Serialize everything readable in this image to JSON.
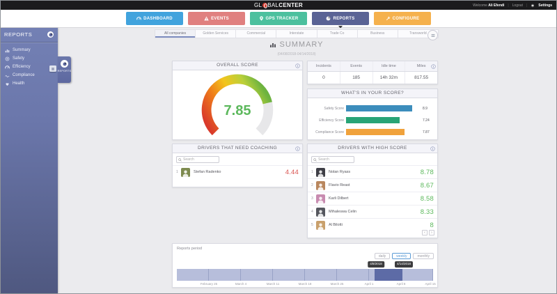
{
  "topbar": {
    "logo_prefix": "GL",
    "logo_mid": "BAL",
    "logo_suffix": "CENTER",
    "welcome": "Welcome",
    "user": "Ali Efendi",
    "logout": "Logout",
    "settings": "Settings"
  },
  "nav": {
    "items": [
      {
        "label": "DASHBOARD",
        "icon": "gauge",
        "color": "#41a3dd",
        "active": false
      },
      {
        "label": "EVENTS",
        "icon": "warning",
        "color": "#e0807f",
        "active": false
      },
      {
        "label": "GPS TRACKER",
        "icon": "pin",
        "color": "#4cc09e",
        "active": false
      },
      {
        "label": "REPORTS",
        "icon": "pie",
        "color": "#5a6395",
        "active": true
      },
      {
        "label": "CONFIGURE",
        "icon": "wrench",
        "color": "#f5b14d",
        "active": false
      }
    ]
  },
  "sidebar": {
    "title": "REPORTS",
    "flyout_label": "REPORTS",
    "items": [
      {
        "label": "Summary",
        "icon": "bars"
      },
      {
        "label": "Safety",
        "icon": "target"
      },
      {
        "label": "Efficiency",
        "icon": "gauge"
      },
      {
        "label": "Compliance",
        "icon": "signature"
      },
      {
        "label": "Health",
        "icon": "heart"
      }
    ]
  },
  "tabs": {
    "items": [
      "All companies",
      "Golden Services",
      "Commercial",
      "Interstate",
      "Trade Co",
      "Business",
      "Transworld"
    ],
    "active_index": 0
  },
  "summary": {
    "title": "SUMMARY",
    "date_range": "(04/08/2018-04/14/2018)"
  },
  "overall_score": {
    "title": "OVERALL SCORE",
    "value": 7.85,
    "max": 10,
    "value_color": "#5cb85c"
  },
  "stats": {
    "headers": [
      "Incidents",
      "Events",
      "Idle time",
      "Miles"
    ],
    "values": [
      "0",
      "185",
      "14h 32m",
      "817.55"
    ]
  },
  "score_breakdown": {
    "title": "WHAT'S IN YOUR SCORE?",
    "chart_data": {
      "type": "bar",
      "orientation": "horizontal",
      "categories": [
        "Safety Score",
        "Efficiency Score",
        "Compliance Score"
      ],
      "values": [
        8.9,
        7.24,
        7.87
      ],
      "colors": [
        "#3c8dbc",
        "#28a476",
        "#f0a23c"
      ],
      "xlim": [
        0,
        10
      ]
    }
  },
  "coaching": {
    "title": "DRIVERS THAT NEED COACHING",
    "search_placeholder": "Search",
    "drivers": [
      {
        "rank": "1",
        "name": "Stefan Radenko",
        "score": "4.44",
        "avatar_color": "#7d8a4f"
      }
    ]
  },
  "high_score": {
    "title": "DRIVERS WITH HIGH SCORE",
    "search_placeholder": "Search",
    "drivers": [
      {
        "rank": "1",
        "name": "Nolan Ryass",
        "score": "8.78",
        "avatar_color": "#3e3e46"
      },
      {
        "rank": "2",
        "name": "Flavio Reast",
        "score": "8.67",
        "avatar_color": "#b9875e"
      },
      {
        "rank": "3",
        "name": "Karli Dilbert",
        "score": "8.58",
        "avatar_color": "#c88bb0"
      },
      {
        "rank": "4",
        "name": "Mihaleswa Celin",
        "score": "8.33",
        "avatar_color": "#55575e"
      },
      {
        "rank": "5",
        "name": "Al Bilotti",
        "score": "8",
        "avatar_color": "#c9a06c"
      }
    ],
    "pagination": [
      "‹",
      "›"
    ]
  },
  "period": {
    "label": "Reports period",
    "buttons": [
      {
        "label": "daily",
        "active": false
      },
      {
        "label": "weekly",
        "active": true
      },
      {
        "label": "monthly",
        "active": false
      }
    ],
    "range_start_tooltip": "4/8/2018",
    "range_end_tooltip": "4/14/2018",
    "selection": {
      "start_pct": 77.3,
      "end_pct": 88.1
    },
    "axis_labels": [
      "February 25",
      "March 4",
      "March 11",
      "March 18",
      "March 25",
      "April 1",
      "April 8",
      "April 15"
    ]
  }
}
